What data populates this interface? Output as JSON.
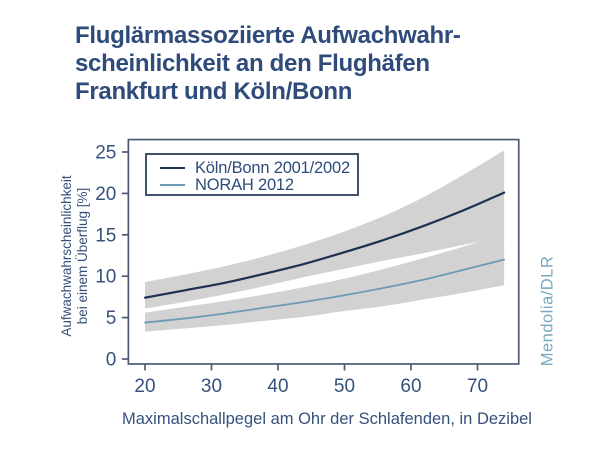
{
  "title": "Fluglärmassoziierte Aufwachwahr-\nscheinlichkeit an den Flughäfen\nFrankfurt und Köln/Bonn",
  "credit": "Mendolia/DLR",
  "colors": {
    "title_navy": "#2E4B7A",
    "axis_line": "#4C5B72",
    "axis_text": "#35517C",
    "band_gray": "#D2D2D2",
    "series_navy": "#1D3050",
    "series_blue": "#6C9BB3",
    "credit_blue": "#78A7C0"
  },
  "chart_data": {
    "type": "line",
    "title": "",
    "xlabel": "Maximalschallpegel am Ohr der Schlafenden, in Dezibel",
    "ylabel": "Aufwachwahrscheinlichkeit\nbei einem Überflug [%]",
    "xlim": [
      17.5,
      76.2
    ],
    "ylim": [
      -0.6,
      26.5
    ],
    "x_ticks": [
      20,
      30,
      40,
      50,
      60,
      70
    ],
    "y_ticks": [
      0,
      5,
      10,
      15,
      20,
      25
    ],
    "grid": false,
    "legend_position": "top-left",
    "band_color": "#D2D2D2",
    "x": [
      20,
      26,
      32,
      38,
      44,
      50,
      56,
      62,
      68,
      74
    ],
    "series": [
      {
        "name": "Köln/Bonn 2001/2002",
        "color": "#1D3050",
        "stroke_width": 2.2,
        "values": [
          7.4,
          8.3,
          9.2,
          10.3,
          11.5,
          12.9,
          14.4,
          16.1,
          18.0,
          20.1
        ],
        "band_upper": [
          9.3,
          10.2,
          11.2,
          12.4,
          13.8,
          15.4,
          17.3,
          19.6,
          22.3,
          25.2
        ],
        "band_lower": [
          6.1,
          6.9,
          7.8,
          8.8,
          9.9,
          10.9,
          11.9,
          12.8,
          13.8,
          14.7
        ]
      },
      {
        "name": "NORAH 2012",
        "color": "#6C9BB3",
        "stroke_width": 1.8,
        "values": [
          4.4,
          4.9,
          5.5,
          6.2,
          6.9,
          7.7,
          8.6,
          9.6,
          10.8,
          12.0
        ],
        "band_upper": [
          5.6,
          6.3,
          7.0,
          7.8,
          8.7,
          9.7,
          10.9,
          12.2,
          13.6,
          15.1
        ],
        "band_lower": [
          3.3,
          3.7,
          4.1,
          4.6,
          5.1,
          5.8,
          6.4,
          7.2,
          8.0,
          8.9
        ]
      }
    ]
  }
}
